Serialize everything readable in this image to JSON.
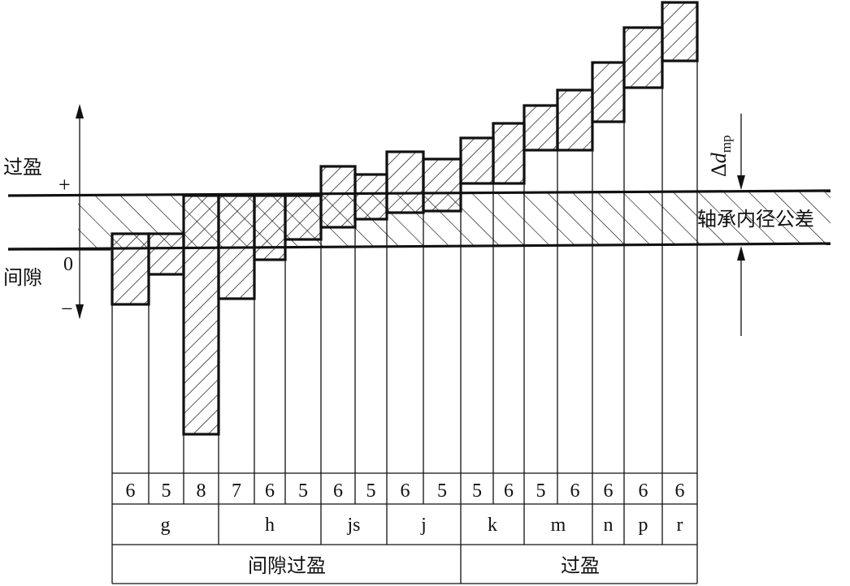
{
  "side_labels": {
    "interference": "过盈",
    "clearance": "间隙",
    "plus": "+",
    "minus": "−",
    "zero": "0"
  },
  "bore": {
    "tolerance_label": "轴承内径公差",
    "delta_symbol": "Δ",
    "delta_var": "d",
    "delta_sub": "mp"
  },
  "shafts": [
    {
      "grade": "6",
      "field": "g"
    },
    {
      "grade": "5",
      "field": "g"
    },
    {
      "grade": "8",
      "field": "g"
    },
    {
      "grade": "7",
      "field": "h"
    },
    {
      "grade": "6",
      "field": "h"
    },
    {
      "grade": "5",
      "field": "h"
    },
    {
      "grade": "6",
      "field": "js"
    },
    {
      "grade": "5",
      "field": "js"
    },
    {
      "grade": "6",
      "field": "j"
    },
    {
      "grade": "5",
      "field": "j"
    },
    {
      "grade": "5",
      "field": "k"
    },
    {
      "grade": "6",
      "field": "k"
    },
    {
      "grade": "5",
      "field": "m"
    },
    {
      "grade": "6",
      "field": "m"
    },
    {
      "grade": "6",
      "field": "n"
    },
    {
      "grade": "6",
      "field": "p"
    },
    {
      "grade": "6",
      "field": "r"
    }
  ],
  "fields": [
    "g",
    "h",
    "js",
    "j",
    "k",
    "m",
    "n",
    "p",
    "r"
  ],
  "fit_types": [
    "间隙过盈",
    "过盈"
  ]
}
